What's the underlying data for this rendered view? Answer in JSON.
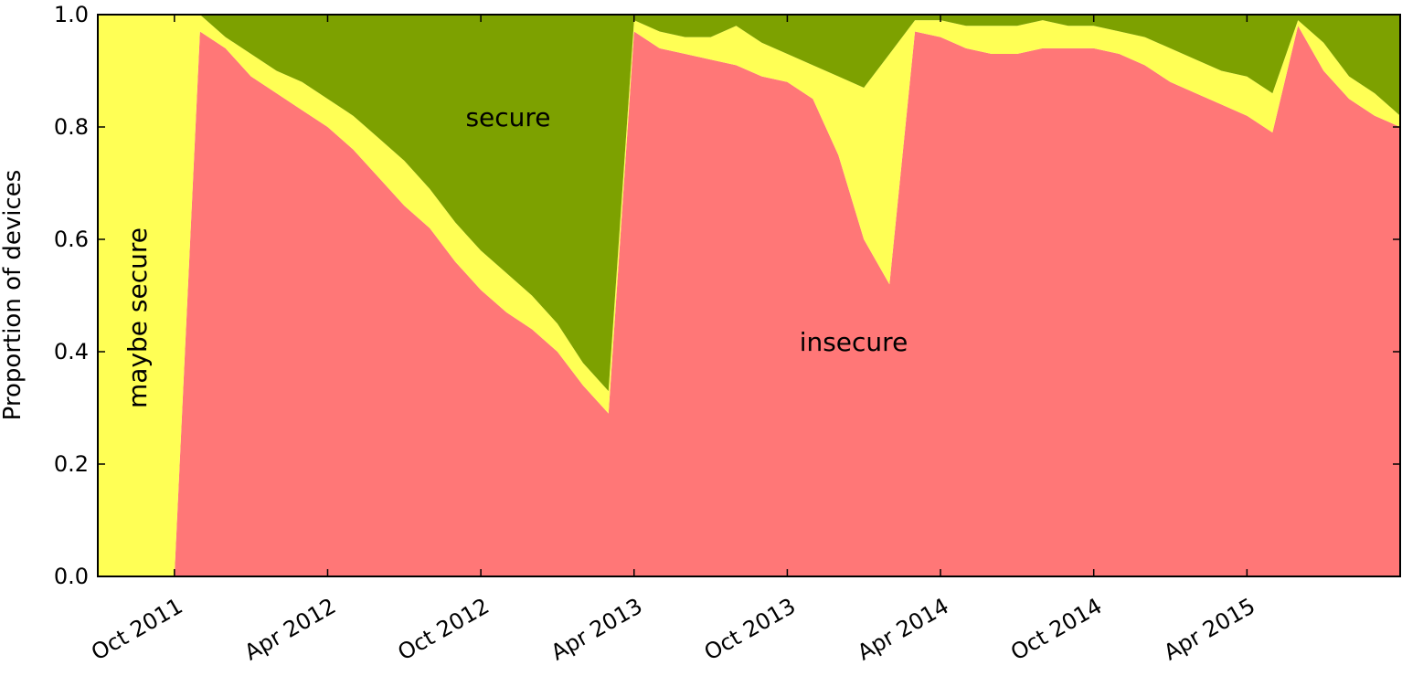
{
  "chart_data": {
    "type": "area",
    "stacked": true,
    "ylabel": "Proportion of devices",
    "ylim": [
      0,
      1
    ],
    "yticks": [
      "0.0",
      "0.2",
      "0.4",
      "0.6",
      "0.8",
      "1.0"
    ],
    "xticks": [
      "Oct 2011",
      "Apr 2012",
      "Oct 2012",
      "Apr 2013",
      "Oct 2013",
      "Apr 2014",
      "Oct 2014",
      "Apr 2015"
    ],
    "x_range": [
      "2011-07",
      "2015-10"
    ],
    "colors": {
      "insecure": "#ff7777",
      "maybe_secure": "#ffff55",
      "secure": "#7da100"
    },
    "annotations": {
      "secure": "secure",
      "insecure": "insecure",
      "maybe_secure": "maybe secure"
    },
    "series": [
      {
        "key": "insecure",
        "x": [
          "2011-07",
          "2011-10",
          "2011-11",
          "2011-12",
          "2012-01",
          "2012-02",
          "2012-03",
          "2012-04",
          "2012-05",
          "2012-06",
          "2012-07",
          "2012-08",
          "2012-09",
          "2012-10",
          "2012-11",
          "2012-12",
          "2013-01",
          "2013-02",
          "2013-03",
          "2013-04",
          "2013-05",
          "2013-06",
          "2013-07",
          "2013-08",
          "2013-09",
          "2013-10",
          "2013-11",
          "2013-12",
          "2014-01",
          "2014-02",
          "2014-03",
          "2014-04",
          "2014-05",
          "2014-06",
          "2014-07",
          "2014-08",
          "2014-09",
          "2014-10",
          "2014-11",
          "2014-12",
          "2015-01",
          "2015-02",
          "2015-03",
          "2015-04",
          "2015-05",
          "2015-06",
          "2015-07",
          "2015-08",
          "2015-09",
          "2015-10"
        ],
        "values": [
          0,
          0,
          0.97,
          0.94,
          0.89,
          0.86,
          0.83,
          0.8,
          0.76,
          0.71,
          0.66,
          0.62,
          0.56,
          0.51,
          0.47,
          0.44,
          0.4,
          0.34,
          0.29,
          0.97,
          0.94,
          0.93,
          0.92,
          0.91,
          0.89,
          0.88,
          0.85,
          0.75,
          0.6,
          0.52,
          0.97,
          0.96,
          0.94,
          0.93,
          0.93,
          0.94,
          0.94,
          0.94,
          0.93,
          0.91,
          0.88,
          0.86,
          0.84,
          0.82,
          0.79,
          0.98,
          0.9,
          0.85,
          0.82,
          0.8
        ]
      },
      {
        "key": "maybe_secure",
        "x": [
          "2011-07",
          "2011-10",
          "2011-11",
          "2011-12",
          "2012-01",
          "2012-02",
          "2012-03",
          "2012-04",
          "2012-05",
          "2012-06",
          "2012-07",
          "2012-08",
          "2012-09",
          "2012-10",
          "2012-11",
          "2012-12",
          "2013-01",
          "2013-02",
          "2013-03",
          "2013-04",
          "2013-05",
          "2013-06",
          "2013-07",
          "2013-08",
          "2013-09",
          "2013-10",
          "2013-11",
          "2013-12",
          "2014-01",
          "2014-02",
          "2014-03",
          "2014-04",
          "2014-05",
          "2014-06",
          "2014-07",
          "2014-08",
          "2014-09",
          "2014-10",
          "2014-11",
          "2014-12",
          "2015-01",
          "2015-02",
          "2015-03",
          "2015-04",
          "2015-05",
          "2015-06",
          "2015-07",
          "2015-08",
          "2015-09",
          "2015-10"
        ],
        "values": [
          1,
          1,
          0.03,
          0.02,
          0.04,
          0.04,
          0.05,
          0.05,
          0.06,
          0.07,
          0.08,
          0.07,
          0.07,
          0.07,
          0.07,
          0.06,
          0.05,
          0.04,
          0.04,
          0.02,
          0.03,
          0.03,
          0.04,
          0.07,
          0.06,
          0.05,
          0.06,
          0.14,
          0.27,
          0.41,
          0.02,
          0.03,
          0.04,
          0.05,
          0.05,
          0.05,
          0.04,
          0.04,
          0.04,
          0.05,
          0.06,
          0.06,
          0.06,
          0.07,
          0.07,
          0.01,
          0.05,
          0.04,
          0.04,
          0.02
        ]
      },
      {
        "key": "secure",
        "x": [
          "2011-07",
          "2011-10",
          "2011-11",
          "2011-12",
          "2012-01",
          "2012-02",
          "2012-03",
          "2012-04",
          "2012-05",
          "2012-06",
          "2012-07",
          "2012-08",
          "2012-09",
          "2012-10",
          "2012-11",
          "2012-12",
          "2013-01",
          "2013-02",
          "2013-03",
          "2013-04",
          "2013-05",
          "2013-06",
          "2013-07",
          "2013-08",
          "2013-09",
          "2013-10",
          "2013-11",
          "2013-12",
          "2014-01",
          "2014-02",
          "2014-03",
          "2014-04",
          "2014-05",
          "2014-06",
          "2014-07",
          "2014-08",
          "2014-09",
          "2014-10",
          "2014-11",
          "2014-12",
          "2015-01",
          "2015-02",
          "2015-03",
          "2015-04",
          "2015-05",
          "2015-06",
          "2015-07",
          "2015-08",
          "2015-09",
          "2015-10"
        ],
        "values": [
          0,
          0,
          0,
          0.04,
          0.07,
          0.1,
          0.12,
          0.15,
          0.18,
          0.22,
          0.26,
          0.31,
          0.37,
          0.42,
          0.46,
          0.5,
          0.55,
          0.62,
          0.67,
          0.01,
          0.03,
          0.04,
          0.04,
          0.02,
          0.05,
          0.07,
          0.09,
          0.11,
          0.13,
          0.07,
          0.01,
          0.01,
          0.02,
          0.02,
          0.02,
          0.01,
          0.02,
          0.02,
          0.03,
          0.04,
          0.06,
          0.08,
          0.1,
          0.11,
          0.14,
          0.01,
          0.05,
          0.11,
          0.14,
          0.18
        ]
      }
    ]
  }
}
